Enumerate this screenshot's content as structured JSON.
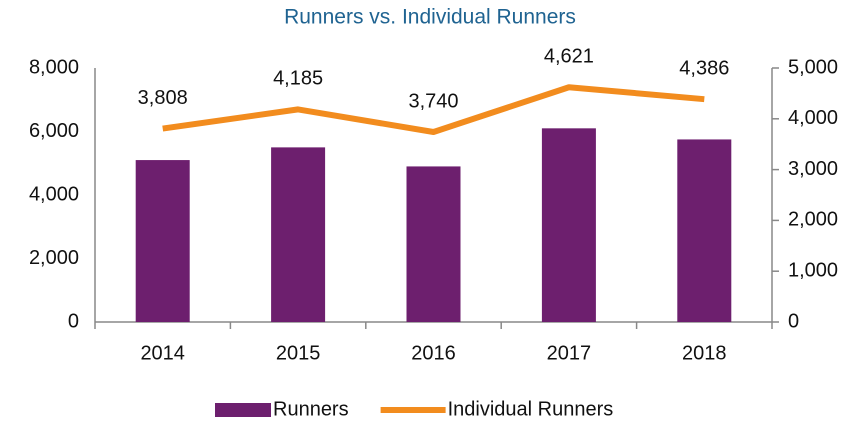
{
  "chart_data": {
    "type": "bar_line",
    "title": "Runners vs. Individual Runners",
    "categories": [
      "2014",
      "2015",
      "2016",
      "2017",
      "2018"
    ],
    "series": [
      {
        "name": "Runners",
        "type": "bar",
        "color": "#6d1f6e",
        "values": [
          5100,
          5500,
          4900,
          6100,
          5750
        ]
      },
      {
        "name": "Individual Runners",
        "type": "line",
        "axis": "y2",
        "color": "#f28c1e",
        "values": [
          3808,
          4185,
          3740,
          4621,
          4386
        ],
        "value_labels": [
          "3,808",
          "4,185",
          "3,740",
          "4,621",
          "4,386"
        ]
      }
    ],
    "ylim": [
      0,
      8000
    ],
    "yticks": [
      0,
      {
        "value": 2000,
        "label": "2,000"
      },
      {
        "value": 4000,
        "label": "4,000"
      },
      {
        "value": 6000,
        "label": "6,000"
      },
      {
        "value": 8000,
        "label": "8,000"
      }
    ],
    "y2lim": [
      0,
      5000
    ],
    "y2ticks": [
      0,
      {
        "value": 1000,
        "label": "1,000"
      },
      {
        "value": 2000,
        "label": "2,000"
      },
      {
        "value": 3000,
        "label": "3,000"
      },
      {
        "value": 4000,
        "label": "4,000"
      },
      {
        "value": 5000,
        "label": "5,000"
      }
    ],
    "grid": false,
    "legend": "bottom"
  }
}
